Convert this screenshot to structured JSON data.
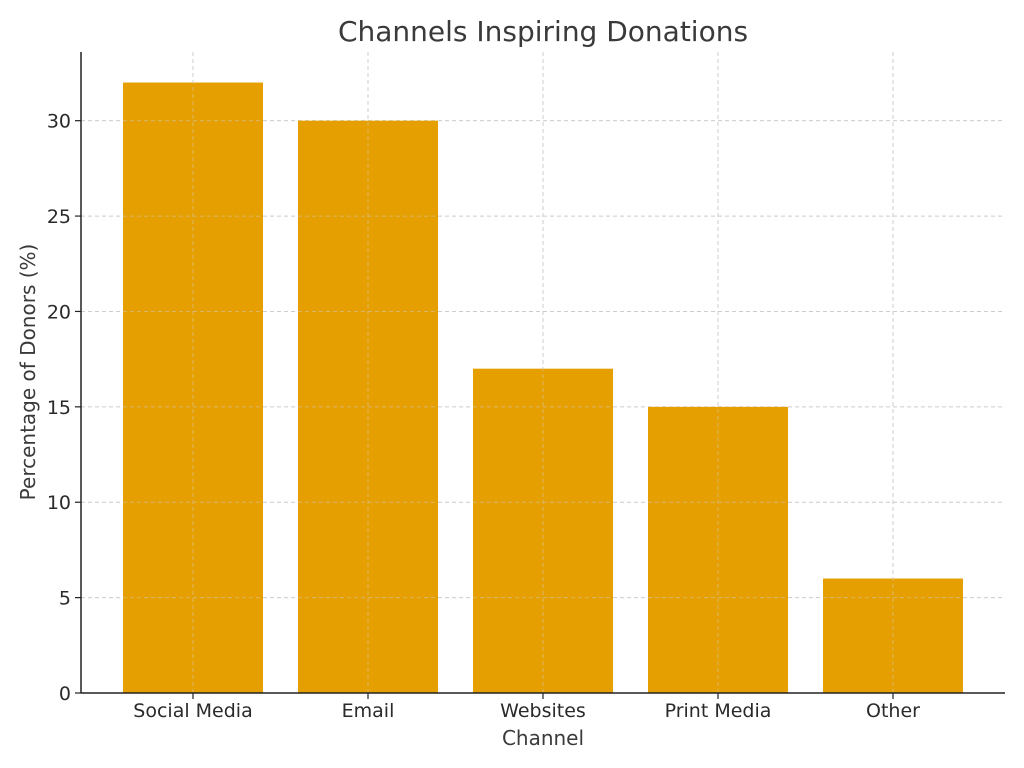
{
  "chart_data": {
    "type": "bar",
    "title": "Channels Inspiring Donations",
    "xlabel": "Channel",
    "ylabel": "Percentage of Donors (%)",
    "categories": [
      "Social Media",
      "Email",
      "Websites",
      "Print Media",
      "Other"
    ],
    "values": [
      32,
      30,
      17,
      15,
      6
    ],
    "ylim": [
      0,
      33.6
    ],
    "yticks": [
      0,
      5,
      10,
      15,
      20,
      25,
      30
    ],
    "grid": true,
    "bar_color": "#E69F00"
  }
}
